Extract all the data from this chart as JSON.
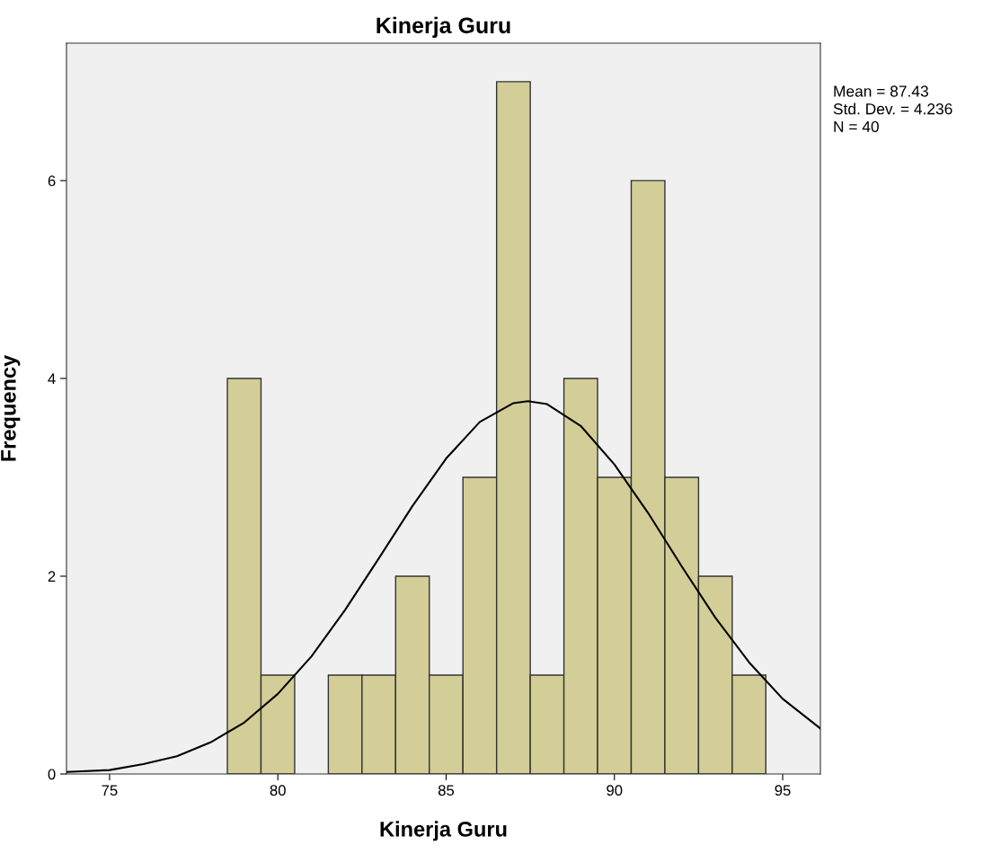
{
  "chart_data": {
    "type": "histogram",
    "title": "Kinerja Guru",
    "xlabel": "Kinerja Guru",
    "ylabel": "Frequency",
    "bins": [
      78.5,
      79.5,
      80.5,
      81.5,
      82.5,
      83.5,
      84.5,
      85.5,
      86.5,
      87.5,
      88.5,
      89.5,
      90.5,
      91.5,
      92.5,
      93.5,
      94.5
    ],
    "values": [
      4,
      1,
      0,
      1,
      1,
      2,
      1,
      3,
      7,
      1,
      4,
      3,
      6,
      3,
      2,
      1
    ],
    "color": "#d3ce97",
    "series": [
      {
        "type": "line",
        "color": "#000000",
        "x": [
          73.72,
          75,
          76,
          77,
          78,
          79,
          80,
          81,
          82,
          83,
          84,
          85,
          86,
          87,
          87.43,
          88,
          89,
          90,
          91,
          92,
          93,
          94,
          95,
          96.12
        ],
        "values": [
          0.02,
          0.04,
          0.1,
          0.18,
          0.32,
          0.52,
          0.81,
          1.19,
          1.66,
          2.18,
          2.71,
          3.19,
          3.56,
          3.75,
          3.77,
          3.74,
          3.52,
          3.13,
          2.64,
          2.1,
          1.58,
          1.13,
          0.76,
          0.46
        ]
      }
    ],
    "xlim": [
      73.72,
      96.12
    ],
    "ylim": [
      0,
      7.39
    ],
    "xticks": [
      75,
      80,
      85,
      90,
      95
    ],
    "yticks": [
      0,
      2,
      4,
      6
    ],
    "grid": false,
    "legend": false,
    "annotations": [
      "Mean = 87.43",
      "Std. Dev. = 4.236",
      "N = 40"
    ]
  }
}
